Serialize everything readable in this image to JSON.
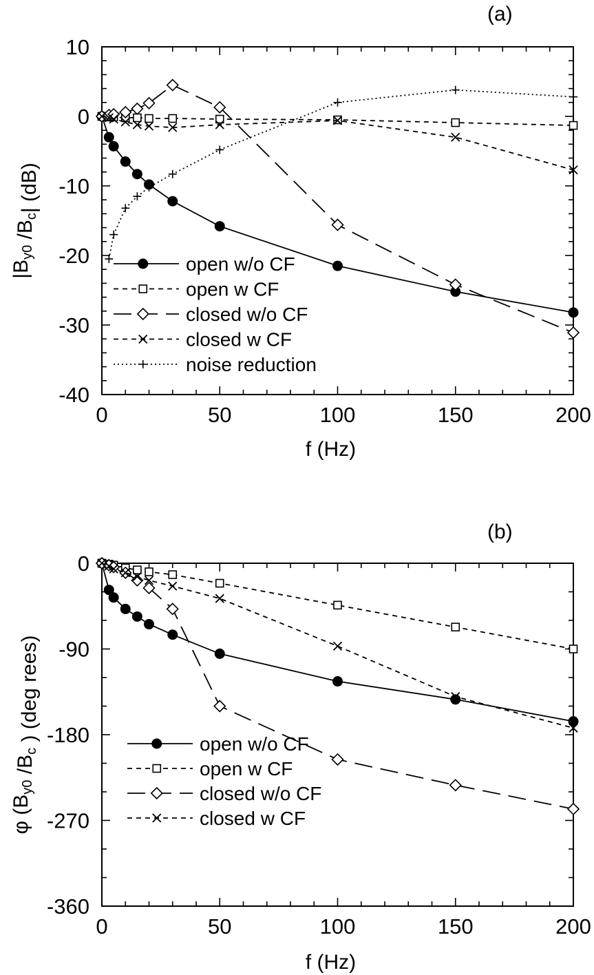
{
  "chart_data": [
    {
      "type": "line",
      "panel_label": "(a)",
      "xlabel": "f (Hz)",
      "ylabel": "|B_y0 /B_c| (dB)",
      "xlim": [
        0,
        200
      ],
      "ylim": [
        -40,
        10
      ],
      "xticks": [
        "0",
        "50",
        "100",
        "150",
        "200"
      ],
      "yticks": [
        "10",
        "0",
        "-10",
        "-20",
        "-30",
        "-40"
      ],
      "legend_position": "bottom-left",
      "series": [
        {
          "name": "open w/o CF",
          "marker": "filled-circle",
          "line": "solid",
          "x": [
            0,
            3,
            5,
            10,
            15,
            20,
            30,
            50,
            100,
            150,
            200
          ],
          "y": [
            0,
            -3,
            -4.3,
            -6.5,
            -8.3,
            -9.8,
            -12.2,
            -15.8,
            -21.5,
            -25.2,
            -28.2
          ]
        },
        {
          "name": "open w CF",
          "marker": "open-square",
          "line": "short-dash",
          "x": [
            0,
            3,
            5,
            10,
            15,
            20,
            30,
            50,
            100,
            150,
            200
          ],
          "y": [
            0,
            -0.1,
            -0.1,
            -0.2,
            -0.2,
            -0.3,
            -0.3,
            -0.4,
            -0.5,
            -0.9,
            -1.3
          ]
        },
        {
          "name": "closed w/o CF",
          "marker": "open-diamond",
          "line": "long-dash",
          "x": [
            0,
            3,
            5,
            10,
            15,
            20,
            30,
            50,
            100,
            150,
            200
          ],
          "y": [
            0,
            0.2,
            0.3,
            0.6,
            1.1,
            1.9,
            4.5,
            1.3,
            -15.6,
            -24.2,
            -31.1
          ]
        },
        {
          "name": "closed w CF",
          "marker": "cross",
          "line": "short-dash",
          "x": [
            0,
            3,
            5,
            10,
            15,
            20,
            30,
            50,
            100,
            150,
            200
          ],
          "y": [
            0,
            -0.2,
            -0.4,
            -0.8,
            -1.2,
            -1.4,
            -1.6,
            -1.2,
            -0.6,
            -3.0,
            -7.7
          ]
        },
        {
          "name": "noise reduction",
          "marker": "plus",
          "line": "dotted",
          "x": [
            3,
            5,
            10,
            15,
            20,
            30,
            50,
            100,
            150,
            200
          ],
          "y": [
            -20.5,
            -17,
            -13.2,
            -11.5,
            -10.2,
            -8.3,
            -4.8,
            2.0,
            3.8,
            2.8
          ]
        }
      ]
    },
    {
      "type": "line",
      "panel_label": "(b)",
      "xlabel": "f (Hz)",
      "ylabel": "φ (B_y0 /B_c ) (deg rees)",
      "xlim": [
        0,
        200
      ],
      "ylim": [
        -360,
        0
      ],
      "xticks": [
        "0",
        "50",
        "100",
        "150",
        "200"
      ],
      "yticks": [
        "0",
        "-90",
        "-180",
        "-270",
        "-360"
      ],
      "legend_position": "bottom-left",
      "series": [
        {
          "name": "open w/o CF",
          "marker": "filled-circle",
          "line": "solid",
          "x": [
            0,
            3,
            5,
            10,
            15,
            20,
            30,
            50,
            100,
            150,
            200
          ],
          "y": [
            0,
            -28,
            -36,
            -48,
            -56,
            -64,
            -75,
            -95,
            -124,
            -143,
            -166
          ]
        },
        {
          "name": "open w CF",
          "marker": "open-square",
          "line": "short-dash",
          "x": [
            0,
            3,
            5,
            10,
            15,
            20,
            30,
            50,
            100,
            150,
            200
          ],
          "y": [
            0,
            -1,
            -2,
            -5,
            -7,
            -9,
            -12,
            -21,
            -44,
            -67,
            -90
          ]
        },
        {
          "name": "closed w/o CF",
          "marker": "open-diamond",
          "line": "long-dash",
          "x": [
            0,
            3,
            5,
            10,
            15,
            20,
            30,
            50,
            100,
            150,
            200
          ],
          "y": [
            0,
            -2,
            -4,
            -10,
            -18,
            -26,
            -48,
            -150,
            -206,
            -233,
            -258
          ]
        },
        {
          "name": "closed w CF",
          "marker": "cross",
          "line": "short-dash",
          "x": [
            0,
            3,
            5,
            10,
            15,
            20,
            30,
            50,
            100,
            150,
            200
          ],
          "y": [
            0,
            -3,
            -6,
            -10,
            -14,
            -18,
            -24,
            -37,
            -87,
            -140,
            -173
          ]
        }
      ]
    }
  ]
}
